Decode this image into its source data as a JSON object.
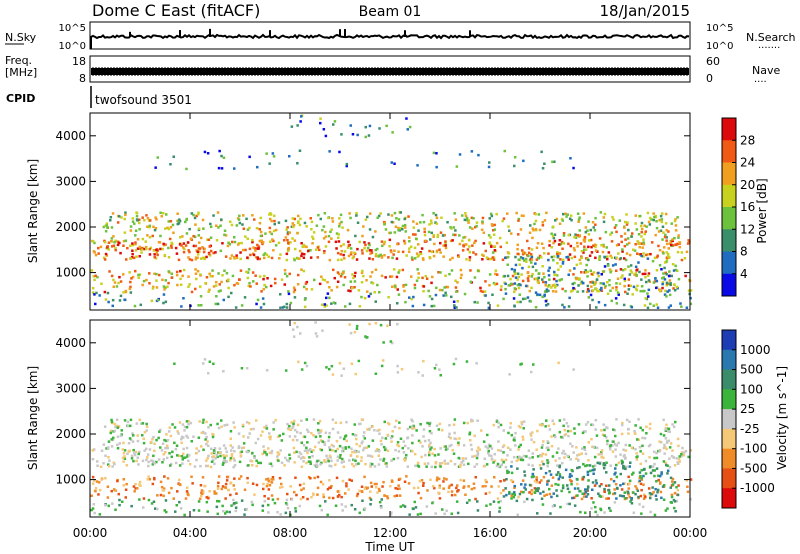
{
  "header": {
    "station": "Dome C East (fitACF)",
    "beam": "Beam 01",
    "date": "18/Jan/2015"
  },
  "nsky_panel": {
    "label": "N.Sky",
    "ticks": [
      "10^5",
      "10^0"
    ],
    "right_ticks": [
      "10^5",
      "10^0"
    ],
    "right_label": "N.Search",
    "right_dots": "......."
  },
  "freq_panel": {
    "label_line1": "Freq.",
    "label_line2": "[MHz]",
    "ticks": [
      "18",
      "8"
    ],
    "right_ticks": [
      "60",
      "0"
    ],
    "right_label": "Nave",
    "right_dots": "...."
  },
  "cpid_panel": {
    "label": "CPID",
    "program": "twofsound 3501"
  },
  "x_axis": {
    "title": "Time UT",
    "ticks": [
      "00:00",
      "04:00",
      "08:00",
      "12:00",
      "16:00",
      "20:00",
      "00:00"
    ]
  },
  "chart_data": [
    {
      "type": "heatmap",
      "title": "Power",
      "ylabel": "Slant Range [km]",
      "xlabel": "Time UT",
      "xlim": [
        0,
        24
      ],
      "ylim": [
        180,
        4500
      ],
      "yticks": [
        "1000",
        "2000",
        "3000",
        "4000"
      ],
      "colorbar": {
        "label": "Power [dB]",
        "ticks": [
          "4",
          "8",
          "12",
          "16",
          "20",
          "24",
          "28"
        ],
        "range": [
          0,
          30
        ],
        "colors": [
          "#0a0ae6",
          "#1f6cc0",
          "#3a8f6a",
          "#6cc23c",
          "#c8d21e",
          "#f0a01e",
          "#f05a14",
          "#dc0a0a"
        ]
      }
    },
    {
      "type": "heatmap",
      "title": "Velocity",
      "ylabel": "Slant Range [km]",
      "xlabel": "Time UT",
      "xlim": [
        0,
        24
      ],
      "ylim": [
        180,
        4500
      ],
      "yticks": [
        "1000",
        "2000",
        "3000",
        "4000"
      ],
      "colorbar": {
        "label": "Velocity [m s^-1]",
        "ticks": [
          "1000",
          "500",
          "100",
          "25",
          "-25",
          "-100",
          "-500",
          "-1000"
        ],
        "colors": [
          "#1e3cb4",
          "#2a78b0",
          "#3a8c6a",
          "#3cb43c",
          "#c8c8c8",
          "#f5c878",
          "#f08c28",
          "#e65014",
          "#dc0a0a"
        ]
      }
    }
  ]
}
